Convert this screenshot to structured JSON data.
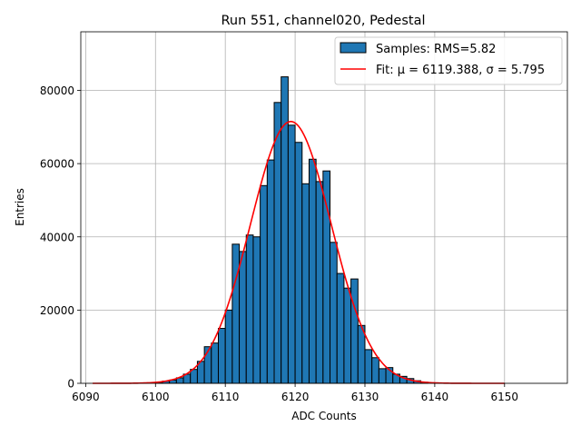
{
  "chart_data": {
    "type": "bar",
    "title": "Run 551, channel020, Pedestal",
    "xlabel": "ADC Counts",
    "ylabel": "Entries",
    "xlim": [
      6089.3,
      6159.0
    ],
    "ylim": [
      0,
      96000
    ],
    "xticks": [
      6090,
      6100,
      6110,
      6120,
      6130,
      6140,
      6150
    ],
    "yticks": [
      0,
      20000,
      40000,
      60000,
      80000
    ],
    "grid": true,
    "legend_position": "top-right",
    "bin_width": 1,
    "histogram": {
      "name": "Samples: RMS=5.82",
      "color": "#1f77b4",
      "edgecolor": "#000000",
      "bin_left_edges": [
        6100,
        6101,
        6102,
        6103,
        6104,
        6105,
        6106,
        6107,
        6108,
        6109,
        6110,
        6111,
        6112,
        6113,
        6114,
        6115,
        6116,
        6117,
        6118,
        6119,
        6120,
        6121,
        6122,
        6123,
        6124,
        6125,
        6126,
        6127,
        6128,
        6129,
        6130,
        6131,
        6132,
        6133,
        6134,
        6135,
        6136,
        6137,
        6138
      ],
      "counts": [
        300,
        600,
        900,
        1500,
        2500,
        3800,
        6000,
        10000,
        11000,
        15000,
        20000,
        38000,
        36000,
        40500,
        40000,
        54000,
        61000,
        76700,
        83700,
        70500,
        65800,
        54500,
        61200,
        55100,
        58000,
        38500,
        30000,
        26000,
        28500,
        15800,
        9200,
        7000,
        4000,
        4300,
        2500,
        1900,
        1300,
        700,
        300
      ]
    },
    "fit": {
      "name": "Fit: μ = 6119.388, σ = 5.795",
      "color": "#ff0000",
      "mu": 6119.388,
      "sigma": 5.795,
      "amplitude": 71500,
      "x_range": [
        6091,
        6150
      ]
    }
  }
}
